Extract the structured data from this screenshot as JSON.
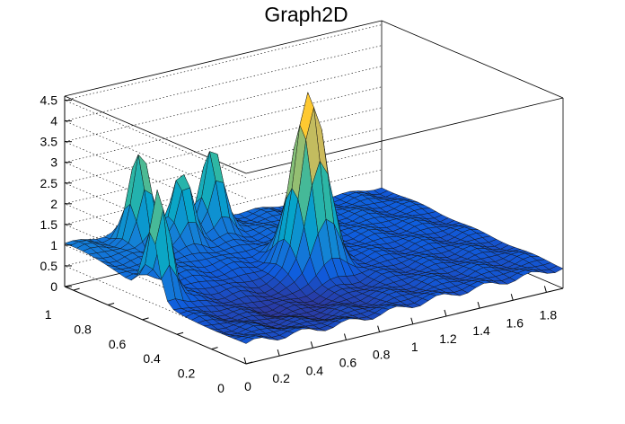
{
  "chart_data": {
    "type": "surface3d",
    "title": "Graph2D",
    "xlabel": "",
    "ylabel": "",
    "zlabel": "",
    "xlim": [
      0,
      1.9
    ],
    "ylim": [
      0,
      1.05
    ],
    "zlim": [
      0,
      4.6
    ],
    "x_ticks": [
      "0",
      "0.2",
      "0.4",
      "0.6",
      "0.8",
      "1",
      "1.2",
      "1.4",
      "1.6",
      "1.8"
    ],
    "y_ticks": [
      "0",
      "0.2",
      "0.4",
      "0.6",
      "0.8",
      "1"
    ],
    "z_ticks": [
      "0",
      "0.5",
      "1",
      "1.5",
      "2",
      "2.5",
      "3",
      "3.5",
      "4",
      "4.5"
    ],
    "grid": true,
    "colormap": [
      "#352a87",
      "#0f5cdd",
      "#1481d6",
      "#06a4ca",
      "#2eb7a4",
      "#87bf77",
      "#d1bb59",
      "#fec832",
      "#f9fb0e"
    ],
    "surface_features": {
      "baseline": 0.5,
      "peaks": [
        {
          "x": 0.95,
          "y": 0.55,
          "height": 4.7
        },
        {
          "x": 0.05,
          "y": 0.55,
          "height": 3.1
        },
        {
          "x": 0.35,
          "y": 0.95,
          "height": 2.7
        },
        {
          "x": 0.78,
          "y": 0.95,
          "height": 2.6
        },
        {
          "x": 0.55,
          "y": 0.9,
          "height": 2.2
        }
      ]
    }
  }
}
